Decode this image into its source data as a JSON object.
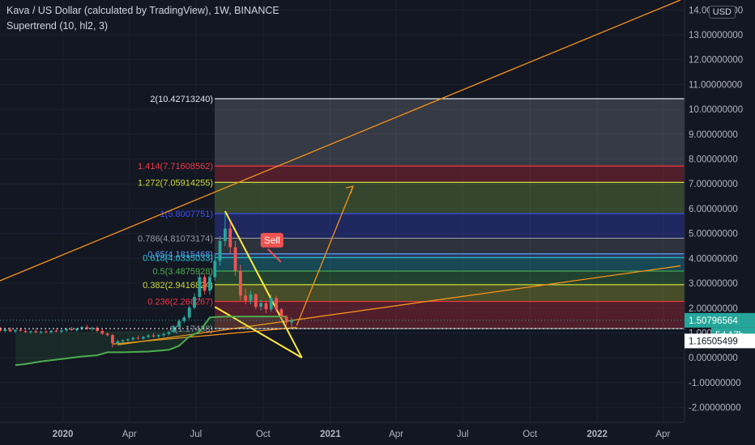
{
  "header": {
    "title": "Kava / US Dollar (calculated by TradingView), 1W, BINANCE",
    "indicator": "Supertrend (10, hl2, 3)",
    "currency": "USD"
  },
  "price_axis": {
    "ticks": [
      "14.00000000",
      "13.00000000",
      "12.00000000",
      "11.00000000",
      "10.00000000",
      "9.00000000",
      "8.00000000",
      "7.00000000",
      "6.00000000",
      "5.00000000",
      "4.00000000",
      "3.00000000",
      "2.00000000",
      "1.00000000",
      "0.00000000",
      "-1.00000000",
      "-2.00000000"
    ],
    "current_price": "1.50796564",
    "countdown": "5d 17h",
    "supertrend_value": "1.16505499"
  },
  "time_axis": {
    "ticks": [
      "2020",
      "Apr",
      "Jul",
      "Oct",
      "2021",
      "Apr",
      "Jul",
      "Oct",
      "2022",
      "Apr"
    ]
  },
  "chart_data": {
    "type": "candlestick",
    "title": "Kava / US Dollar (calculated by TradingView), 1W, BINANCE",
    "ylim": [
      -2.6,
      14.4
    ],
    "x_range": [
      "2019-10-07",
      "2022-04-25"
    ],
    "fib_levels": [
      {
        "label": "2(10.42713240)",
        "ratio": 2,
        "price": 10.4271324,
        "color": "#e0e3eb"
      },
      {
        "label": "1.414(7.71608562)",
        "ratio": 1.414,
        "price": 7.71608562,
        "color": "#f23645"
      },
      {
        "label": "1.272(7.05914255)",
        "ratio": 1.272,
        "price": 7.05914255,
        "color": "#cddc39"
      },
      {
        "label": "1(5.8007751)",
        "ratio": 1,
        "price": 5.8007751,
        "color": "#3f51ff"
      },
      {
        "label": "0.786(4.81073174)",
        "ratio": 0.786,
        "price": 4.81073174,
        "color": "#9598a1"
      },
      {
        "label": "0.65(4.1815468)",
        "ratio": 0.65,
        "price": 4.1815468,
        "color": "#5b9cf6"
      },
      {
        "label": "0.618(4.0335033)",
        "ratio": 0.618,
        "price": 4.0335033,
        "color": "#26c6da"
      },
      {
        "label": "0.5(3.4875928)",
        "ratio": 0.5,
        "price": 3.4875928,
        "color": "#4caf50"
      },
      {
        "label": "0.382(2.9416824)",
        "ratio": 0.382,
        "price": 2.9416824,
        "color": "#cddc39"
      },
      {
        "label": "0.236(2.266267)",
        "ratio": 0.236,
        "price": 2.266267,
        "color": "#f23645"
      },
      {
        "label": "0(1.17438)",
        "ratio": 0,
        "price": 1.17438,
        "color": "#9598a1"
      }
    ],
    "candles": [
      {
        "t": "2019-10-07",
        "o": 1.16,
        "h": 1.25,
        "l": 1.04,
        "c": 1.08
      },
      {
        "t": "2019-10-14",
        "o": 1.08,
        "h": 1.2,
        "l": 1.02,
        "c": 1.14
      },
      {
        "t": "2019-10-21",
        "o": 1.14,
        "h": 1.22,
        "l": 1.04,
        "c": 1.06
      },
      {
        "t": "2019-10-28",
        "o": 1.06,
        "h": 1.15,
        "l": 0.99,
        "c": 1.12
      },
      {
        "t": "2019-11-04",
        "o": 1.12,
        "h": 1.2,
        "l": 1.05,
        "c": 1.08
      },
      {
        "t": "2019-11-11",
        "o": 1.08,
        "h": 1.14,
        "l": 1.0,
        "c": 1.03
      },
      {
        "t": "2019-11-18",
        "o": 1.03,
        "h": 1.1,
        "l": 0.96,
        "c": 1.07
      },
      {
        "t": "2019-11-25",
        "o": 1.07,
        "h": 1.16,
        "l": 1.0,
        "c": 1.02
      },
      {
        "t": "2019-12-02",
        "o": 1.02,
        "h": 1.09,
        "l": 0.96,
        "c": 1.06
      },
      {
        "t": "2019-12-09",
        "o": 1.06,
        "h": 1.12,
        "l": 0.99,
        "c": 1.03
      },
      {
        "t": "2019-12-16",
        "o": 1.03,
        "h": 1.11,
        "l": 0.97,
        "c": 1.09
      },
      {
        "t": "2019-12-23",
        "o": 1.09,
        "h": 1.17,
        "l": 1.03,
        "c": 1.05
      },
      {
        "t": "2019-12-30",
        "o": 1.05,
        "h": 1.13,
        "l": 0.98,
        "c": 1.1
      },
      {
        "t": "2020-01-06",
        "o": 1.1,
        "h": 1.2,
        "l": 1.04,
        "c": 1.15
      },
      {
        "t": "2020-01-13",
        "o": 1.15,
        "h": 1.24,
        "l": 1.08,
        "c": 1.11
      },
      {
        "t": "2020-01-20",
        "o": 1.11,
        "h": 1.2,
        "l": 1.04,
        "c": 1.17
      },
      {
        "t": "2020-01-27",
        "o": 1.17,
        "h": 1.28,
        "l": 1.1,
        "c": 1.23
      },
      {
        "t": "2020-02-03",
        "o": 1.23,
        "h": 1.32,
        "l": 1.12,
        "c": 1.16
      },
      {
        "t": "2020-02-10",
        "o": 1.16,
        "h": 1.25,
        "l": 1.07,
        "c": 1.2
      },
      {
        "t": "2020-02-17",
        "o": 1.2,
        "h": 1.27,
        "l": 1.03,
        "c": 1.08
      },
      {
        "t": "2020-02-24",
        "o": 1.08,
        "h": 1.14,
        "l": 0.92,
        "c": 0.97
      },
      {
        "t": "2020-03-02",
        "o": 0.97,
        "h": 1.03,
        "l": 0.86,
        "c": 0.91
      },
      {
        "t": "2020-03-09",
        "o": 0.91,
        "h": 0.96,
        "l": 0.42,
        "c": 0.58
      },
      {
        "t": "2020-03-16",
        "o": 0.58,
        "h": 0.72,
        "l": 0.52,
        "c": 0.66
      },
      {
        "t": "2020-03-23",
        "o": 0.66,
        "h": 0.75,
        "l": 0.6,
        "c": 0.7
      },
      {
        "t": "2020-03-30",
        "o": 0.7,
        "h": 0.79,
        "l": 0.64,
        "c": 0.74
      },
      {
        "t": "2020-04-06",
        "o": 0.74,
        "h": 0.84,
        "l": 0.68,
        "c": 0.8
      },
      {
        "t": "2020-04-13",
        "o": 0.8,
        "h": 0.9,
        "l": 0.73,
        "c": 0.77
      },
      {
        "t": "2020-04-20",
        "o": 0.77,
        "h": 0.88,
        "l": 0.72,
        "c": 0.84
      },
      {
        "t": "2020-04-27",
        "o": 0.84,
        "h": 0.95,
        "l": 0.78,
        "c": 0.9
      },
      {
        "t": "2020-05-04",
        "o": 0.9,
        "h": 0.99,
        "l": 0.82,
        "c": 0.86
      },
      {
        "t": "2020-05-11",
        "o": 0.86,
        "h": 0.95,
        "l": 0.79,
        "c": 0.91
      },
      {
        "t": "2020-05-18",
        "o": 0.91,
        "h": 1.0,
        "l": 0.85,
        "c": 0.96
      },
      {
        "t": "2020-05-25",
        "o": 0.96,
        "h": 1.08,
        "l": 0.9,
        "c": 1.03
      },
      {
        "t": "2020-06-01",
        "o": 1.03,
        "h": 1.3,
        "l": 1.0,
        "c": 1.25
      },
      {
        "t": "2020-06-08",
        "o": 1.25,
        "h": 1.55,
        "l": 1.18,
        "c": 1.48
      },
      {
        "t": "2020-06-15",
        "o": 1.48,
        "h": 1.7,
        "l": 1.4,
        "c": 1.62
      },
      {
        "t": "2020-06-22",
        "o": 1.62,
        "h": 2.1,
        "l": 1.55,
        "c": 2.02
      },
      {
        "t": "2020-06-29",
        "o": 2.02,
        "h": 2.6,
        "l": 1.95,
        "c": 2.45
      },
      {
        "t": "2020-07-06",
        "o": 2.45,
        "h": 3.4,
        "l": 2.3,
        "c": 3.25
      },
      {
        "t": "2020-07-13",
        "o": 3.25,
        "h": 3.35,
        "l": 2.55,
        "c": 2.7
      },
      {
        "t": "2020-07-20",
        "o": 2.7,
        "h": 3.4,
        "l": 2.55,
        "c": 3.25
      },
      {
        "t": "2020-07-27",
        "o": 3.25,
        "h": 4.15,
        "l": 3.1,
        "c": 3.9
      },
      {
        "t": "2020-08-03",
        "o": 3.9,
        "h": 4.9,
        "l": 3.7,
        "c": 4.7
      },
      {
        "t": "2020-08-10",
        "o": 4.7,
        "h": 5.8,
        "l": 4.5,
        "c": 5.2
      },
      {
        "t": "2020-08-17",
        "o": 5.2,
        "h": 5.45,
        "l": 4.2,
        "c": 4.45
      },
      {
        "t": "2020-08-24",
        "o": 4.45,
        "h": 4.7,
        "l": 3.3,
        "c": 3.5
      },
      {
        "t": "2020-08-31",
        "o": 3.5,
        "h": 3.75,
        "l": 2.3,
        "c": 2.5
      },
      {
        "t": "2020-09-07",
        "o": 2.5,
        "h": 2.8,
        "l": 2.15,
        "c": 2.3
      },
      {
        "t": "2020-09-14",
        "o": 2.3,
        "h": 2.7,
        "l": 2.15,
        "c": 2.55
      },
      {
        "t": "2020-09-21",
        "o": 2.55,
        "h": 2.6,
        "l": 1.95,
        "c": 2.05
      },
      {
        "t": "2020-09-28",
        "o": 2.05,
        "h": 2.35,
        "l": 1.9,
        "c": 2.2
      },
      {
        "t": "2020-10-05",
        "o": 2.2,
        "h": 2.3,
        "l": 1.8,
        "c": 1.95
      },
      {
        "t": "2020-10-12",
        "o": 1.95,
        "h": 2.55,
        "l": 1.85,
        "c": 2.4
      },
      {
        "t": "2020-10-19",
        "o": 2.4,
        "h": 2.5,
        "l": 1.85,
        "c": 1.95
      },
      {
        "t": "2020-10-26",
        "o": 1.95,
        "h": 2.0,
        "l": 1.55,
        "c": 1.65
      },
      {
        "t": "2020-11-02",
        "o": 1.65,
        "h": 1.72,
        "l": 1.3,
        "c": 1.42
      },
      {
        "t": "2020-11-09",
        "o": 1.42,
        "h": 1.62,
        "l": 1.15,
        "c": 1.51
      }
    ],
    "supertrend": [
      {
        "t": "2019-10-28",
        "v": -0.3
      },
      {
        "t": "2019-11-11",
        "v": -0.25
      },
      {
        "t": "2019-12-02",
        "v": -0.15
      },
      {
        "t": "2019-12-30",
        "v": -0.05
      },
      {
        "t": "2020-01-27",
        "v": 0.05
      },
      {
        "t": "2020-02-17",
        "v": 0.1
      },
      {
        "t": "2020-03-02",
        "v": 0.22
      },
      {
        "t": "2020-03-09",
        "v": 0.22
      },
      {
        "t": "2020-03-23",
        "v": 0.22
      },
      {
        "t": "2020-04-27",
        "v": 0.25
      },
      {
        "t": "2020-05-25",
        "v": 0.32
      },
      {
        "t": "2020-06-08",
        "v": 0.48
      },
      {
        "t": "2020-06-22",
        "v": 0.85
      },
      {
        "t": "2020-07-06",
        "v": 1.05
      },
      {
        "t": "2020-07-20",
        "v": 1.62
      },
      {
        "t": "2020-08-03",
        "v": 1.65
      },
      {
        "t": "2020-08-17",
        "v": 1.66
      },
      {
        "t": "2020-09-14",
        "v": 1.66
      },
      {
        "t": "2020-10-05",
        "v": 1.66
      },
      {
        "t": "2020-11-02",
        "v": 1.66
      }
    ],
    "trendlines": [
      {
        "name": "upper-channel",
        "color": "#f7931a",
        "p1": {
          "t": "2019-10-07",
          "y": 3.1
        },
        "p2": {
          "t": "2022-04-25",
          "y": 14.4
        }
      },
      {
        "name": "lower-channel",
        "color": "#f7931a",
        "p1": {
          "t": "2020-03-16",
          "y": 0.52
        },
        "p2": {
          "t": "2022-04-25",
          "y": 3.7
        }
      },
      {
        "name": "support-line",
        "color": "#f7931a",
        "p1": {
          "t": "2020-03-09",
          "y": 0.55
        },
        "p2": {
          "t": "2020-11-16",
          "y": 1.22
        }
      },
      {
        "name": "descending-wedge",
        "color": "#ffeb3b",
        "p1": {
          "t": "2020-08-10",
          "y": 5.9
        },
        "p2": {
          "t": "2020-11-23",
          "y": 0.0
        }
      },
      {
        "name": "wedge-base",
        "color": "#ffeb3b",
        "p1": {
          "t": "2020-07-27",
          "y": 2.05
        },
        "p2": {
          "t": "2020-11-23",
          "y": 0.0
        }
      },
      {
        "name": "projection-arrow",
        "color": "#f7931a",
        "p1": {
          "t": "2020-11-16",
          "y": 1.3
        },
        "p2": {
          "t": "2021-02-01",
          "y": 6.9
        }
      }
    ],
    "sell_label": {
      "text": "Sell",
      "t": "2020-10-12",
      "y": 4.7
    }
  }
}
